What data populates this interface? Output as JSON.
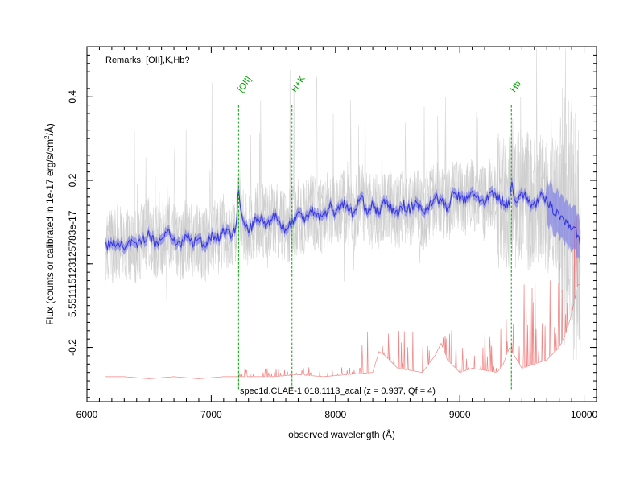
{
  "chart_data": {
    "type": "line",
    "xlabel": "observed wavelength (Å)",
    "ylabel": "Flux (counts or calibrated in 1e-17 erg/s/cm²/Å)",
    "ylabel_parts": {
      "main": "Flux (counts or calibrated in 1e-17 erg/s/cm",
      "sup": "2",
      "tail": "/Å)"
    },
    "xlim": [
      6000,
      10100
    ],
    "ylim": [
      -0.33,
      0.52
    ],
    "x_ticks": [
      {
        "value": 6000,
        "label": "6000"
      },
      {
        "value": 7000,
        "label": "7000"
      },
      {
        "value": 8000,
        "label": "8000"
      },
      {
        "value": 9000,
        "label": "9000"
      },
      {
        "value": 10000,
        "label": "10000"
      }
    ],
    "y_ticks": [
      {
        "value": -0.2,
        "label": "-0.2"
      },
      {
        "value": 0.0,
        "label": "5.551115123125783e-17"
      },
      {
        "value": 0.2,
        "label": "0.2"
      },
      {
        "value": 0.4,
        "label": "0.4"
      }
    ],
    "remarks": "Remarks: [OII],K,Hb?",
    "spectrum_name": "spec1d.CLAE-1.018.1113_acal (z = 0.937, Qf = 4)",
    "spectral_lines": [
      {
        "name": "[OII]",
        "wavelength": 7220
      },
      {
        "name": "H+K",
        "wavelength": 7650
      },
      {
        "name": "Hb",
        "wavelength": 9415
      }
    ],
    "wavelength_range": [
      6150,
      9970
    ],
    "series": [
      {
        "role": "smoothed",
        "x": [
          6150,
          6200,
          6250,
          6300,
          6350,
          6400,
          6450,
          6500,
          6550,
          6600,
          6650,
          6700,
          6750,
          6800,
          6850,
          6900,
          6950,
          7000,
          7050,
          7100,
          7150,
          7200,
          7220,
          7250,
          7300,
          7350,
          7400,
          7450,
          7500,
          7550,
          7600,
          7650,
          7700,
          7750,
          7800,
          7850,
          7900,
          7950,
          8000,
          8050,
          8100,
          8150,
          8200,
          8250,
          8300,
          8350,
          8400,
          8450,
          8500,
          8550,
          8600,
          8650,
          8700,
          8750,
          8800,
          8850,
          8900,
          8950,
          9000,
          9050,
          9100,
          9150,
          9200,
          9250,
          9300,
          9350,
          9400,
          9415,
          9450,
          9500,
          9550,
          9600,
          9650,
          9700,
          9750,
          9800,
          9850,
          9900,
          9950,
          9970
        ],
        "y": [
          0.05,
          0.04,
          0.06,
          0.03,
          0.05,
          0.04,
          0.06,
          0.07,
          0.05,
          0.06,
          0.08,
          0.06,
          0.04,
          0.07,
          0.05,
          0.06,
          0.04,
          0.07,
          0.06,
          0.08,
          0.07,
          0.09,
          0.18,
          0.1,
          0.08,
          0.1,
          0.11,
          0.09,
          0.12,
          0.1,
          0.08,
          0.1,
          0.12,
          0.11,
          0.13,
          0.12,
          0.11,
          0.14,
          0.12,
          0.15,
          0.13,
          0.12,
          0.16,
          0.13,
          0.14,
          0.12,
          0.15,
          0.13,
          0.12,
          0.14,
          0.13,
          0.15,
          0.12,
          0.14,
          0.16,
          0.15,
          0.13,
          0.17,
          0.16,
          0.15,
          0.17,
          0.16,
          0.14,
          0.17,
          0.16,
          0.15,
          0.14,
          0.2,
          0.15,
          0.17,
          0.15,
          0.14,
          0.16,
          0.15,
          0.13,
          0.12,
          0.1,
          0.09,
          0.07,
          0.05
        ]
      },
      {
        "role": "noise",
        "x": [
          6150,
          6300,
          6500,
          6700,
          6900,
          7100,
          7300,
          7500,
          7700,
          7900,
          8100,
          8300,
          8350,
          8400,
          8500,
          8700,
          8800,
          8850,
          8900,
          9000,
          9100,
          9300,
          9350,
          9400,
          9500,
          9600,
          9700,
          9800,
          9850,
          9900,
          9950
        ],
        "y": [
          -0.27,
          -0.27,
          -0.275,
          -0.27,
          -0.275,
          -0.27,
          -0.27,
          -0.27,
          -0.265,
          -0.27,
          -0.265,
          -0.26,
          -0.21,
          -0.22,
          -0.25,
          -0.26,
          -0.22,
          -0.19,
          -0.23,
          -0.26,
          -0.25,
          -0.26,
          -0.24,
          -0.2,
          -0.25,
          -0.24,
          -0.23,
          -0.2,
          -0.17,
          -0.12,
          -0.05
        ]
      }
    ],
    "colors": {
      "raw": "#c8c8c8",
      "smoothed": "#3535dc",
      "band": "#8080e6",
      "noise": "#f07070",
      "line_markers": "#00a000"
    },
    "grid": false
  }
}
